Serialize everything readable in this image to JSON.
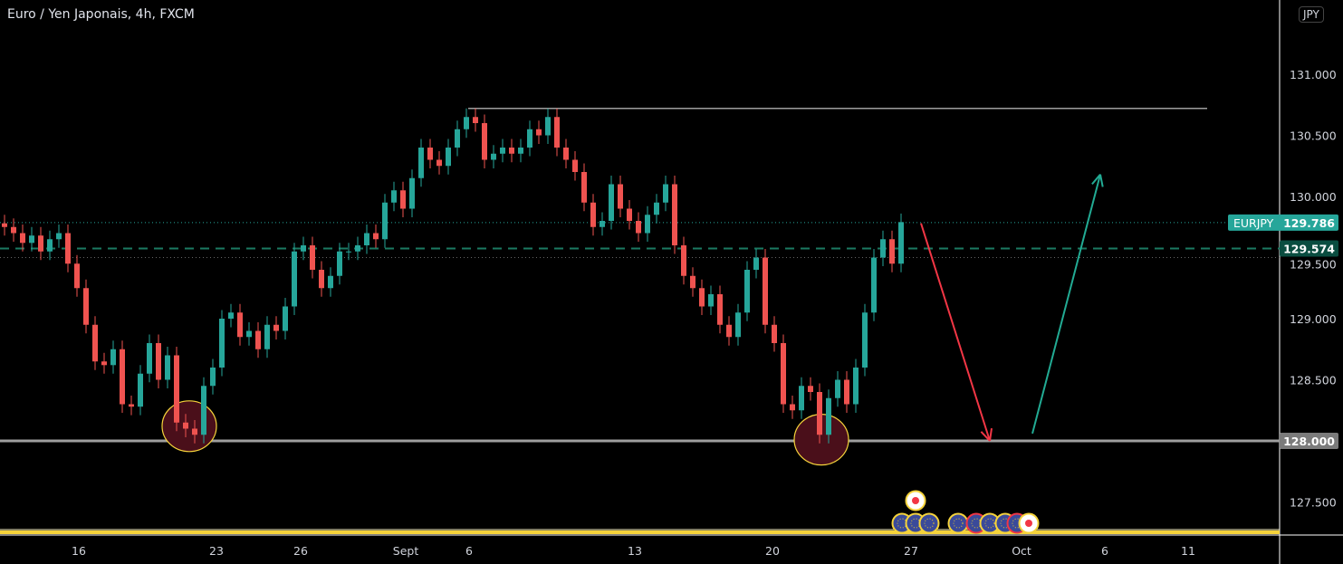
{
  "header": {
    "title": "Euro / Yen Japonais, 4h, FXCM",
    "currency_button": "JPY"
  },
  "colors": {
    "up": "#26a69a",
    "down": "#ef5350",
    "background": "#000000",
    "accent": "#26a69a",
    "line": "#9e9e9e",
    "highlight": "#f5d33b"
  },
  "chart_data": {
    "type": "candlestick",
    "symbol": "EURJPY",
    "ylim": [
      127.2,
      131.6
    ],
    "y_ticks": [
      "131.000",
      "130.500",
      "130.000",
      "129.500",
      "129.000",
      "128.500",
      "128.000",
      "127.500"
    ],
    "y_tick_values": [
      131.0,
      130.5,
      130.0,
      129.5,
      129.0,
      128.5,
      128.0,
      127.5
    ],
    "x_ticks": [
      {
        "label": "16",
        "bar": 8.2
      },
      {
        "label": "23",
        "bar": 23.4
      },
      {
        "label": "26",
        "bar": 32.7
      },
      {
        "label": "Sept",
        "bar": 44.3
      },
      {
        "label": "6",
        "bar": 51.3
      },
      {
        "label": "13",
        "bar": 69.6
      },
      {
        "label": "20",
        "bar": 84.8
      },
      {
        "label": "27",
        "bar": 100.1
      },
      {
        "label": "Oct",
        "bar": 112.3
      },
      {
        "label": "6",
        "bar": 121.5
      },
      {
        "label": "11",
        "bar": 130.7
      }
    ],
    "close": [
      129.75,
      129.7,
      129.62,
      129.68,
      129.55,
      129.65,
      129.7,
      129.45,
      129.25,
      128.95,
      128.65,
      128.62,
      128.75,
      128.3,
      128.28,
      128.55,
      128.8,
      128.5,
      128.7,
      128.15,
      128.1,
      128.05,
      128.45,
      128.6,
      129.0,
      129.05,
      128.85,
      128.9,
      128.75,
      128.95,
      128.9,
      129.1,
      129.55,
      129.6,
      129.4,
      129.25,
      129.35,
      129.55,
      129.55,
      129.6,
      129.7,
      129.65,
      129.95,
      130.05,
      129.9,
      130.15,
      130.4,
      130.3,
      130.25,
      130.4,
      130.55,
      130.65,
      130.6,
      130.3,
      130.35,
      130.4,
      130.35,
      130.4,
      130.55,
      130.5,
      130.65,
      130.4,
      130.3,
      130.2,
      129.95,
      129.75,
      129.8,
      130.1,
      129.9,
      129.8,
      129.7,
      129.85,
      129.95,
      130.1,
      129.6,
      129.35,
      129.25,
      129.1,
      129.2,
      128.95,
      128.85,
      129.05,
      129.4,
      129.5,
      128.95,
      128.8,
      128.3,
      128.25,
      128.45,
      128.4,
      128.05,
      128.35,
      128.5,
      128.3,
      128.6,
      129.05,
      129.5,
      129.65,
      129.45,
      129.79
    ],
    "last_price": {
      "label": "EURJPY",
      "value": "129.786"
    },
    "levels": [
      {
        "name": "resistance",
        "price": 130.72,
        "label": ""
      },
      {
        "name": "support",
        "price": 128.0,
        "label": "128.000"
      },
      {
        "name": "dashed-level",
        "price": 129.574,
        "label": "129.574"
      }
    ],
    "annotations": [
      {
        "type": "arrow",
        "color": "#f23645",
        "from_bar": 101.2,
        "from_price": 129.78,
        "to_bar": 108.8,
        "to_price": 128.0
      },
      {
        "type": "arrow",
        "color": "#22ab94",
        "from_bar": 113.5,
        "from_price": 128.06,
        "to_bar": 121.0,
        "to_price": 130.18
      },
      {
        "type": "circle",
        "bar": 20.4,
        "price": 128.12
      },
      {
        "type": "circle",
        "bar": 90.2,
        "price": 128.01
      }
    ],
    "events": [
      "eu-flag-icon",
      "eu-flag-icon",
      "eu-flag-icon",
      "eu-flag-icon",
      "eu-flag-icon",
      "eu-flag-icon",
      "eu-flag-icon",
      "eu-flag-icon",
      "japan-flag-icon",
      "japan-flag-icon"
    ]
  }
}
